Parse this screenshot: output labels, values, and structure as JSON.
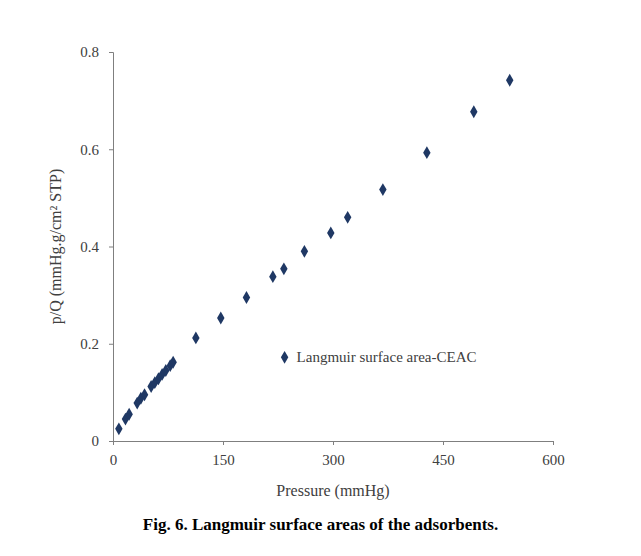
{
  "chart_data": {
    "type": "scatter",
    "title": "Fig. 6. Langmuir surface areas of the adsorbents.",
    "x_label": "Pressure (mmHg)",
    "y_label": "p/Q (mmHg.g/cm² STP)",
    "x": [
      8,
      17,
      22,
      33,
      38,
      43,
      52,
      57,
      62,
      67,
      72,
      78,
      82,
      113,
      147,
      182,
      218,
      233,
      261,
      297,
      320,
      368,
      428,
      492,
      541
    ],
    "series": [
      {
        "name": "Langmuir surface area-CEAC",
        "color": "#1f3864",
        "marker": "diamond",
        "values": [
          0.025,
          0.045,
          0.055,
          0.078,
          0.088,
          0.095,
          0.112,
          0.12,
          0.128,
          0.137,
          0.145,
          0.155,
          0.162,
          0.212,
          0.253,
          0.295,
          0.338,
          0.354,
          0.39,
          0.428,
          0.46,
          0.517,
          0.593,
          0.677,
          0.742
        ]
      }
    ],
    "xlim": [
      0,
      600
    ],
    "ylim": [
      0,
      0.8
    ],
    "xticks": [
      0,
      150,
      300,
      450,
      600
    ],
    "yticks": [
      0,
      0.2,
      0.4,
      0.6,
      0.8
    ],
    "grid": false,
    "legend": "right"
  }
}
